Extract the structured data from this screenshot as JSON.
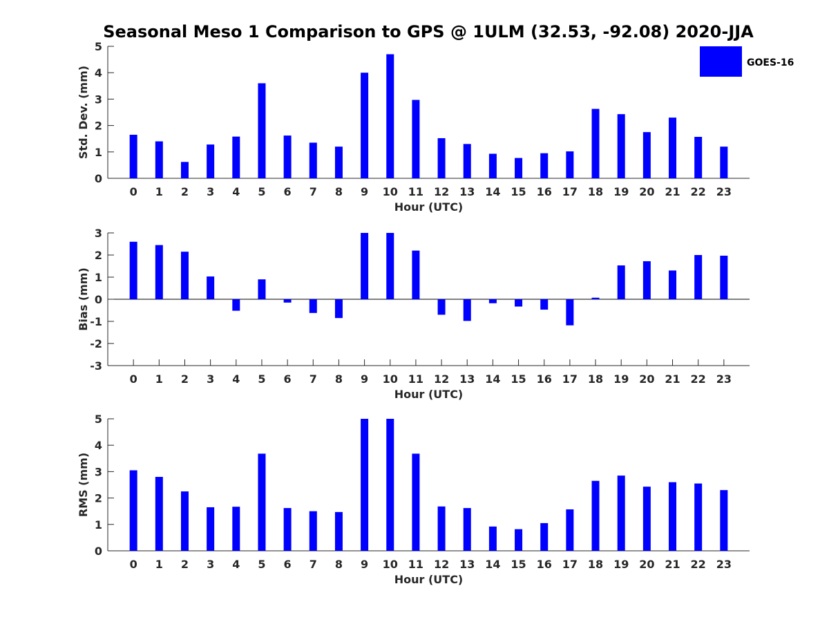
{
  "title": "Seasonal Meso 1 Comparison to GPS @ 1ULM (32.53, -92.08) 2020-JJA",
  "legend": {
    "label": "GOES-16",
    "color": "#0000ff",
    "placement": "top-right"
  },
  "chart_data": [
    {
      "type": "bar",
      "xlabel": "Hour (UTC)",
      "ylabel": "Std. Dev. (mm)",
      "ylim": [
        0,
        5
      ],
      "yticks": [
        0,
        1,
        2,
        3,
        4,
        5
      ],
      "grid": false,
      "categories": [
        "0",
        "1",
        "2",
        "3",
        "4",
        "5",
        "6",
        "7",
        "8",
        "9",
        "10",
        "11",
        "12",
        "13",
        "14",
        "15",
        "16",
        "17",
        "18",
        "19",
        "20",
        "21",
        "22",
        "23"
      ],
      "series": [
        {
          "name": "GOES-16",
          "color": "#0000ff",
          "values": [
            1.65,
            1.4,
            0.62,
            1.28,
            1.58,
            3.6,
            1.62,
            1.35,
            1.2,
            4.0,
            4.7,
            2.97,
            1.52,
            1.3,
            0.93,
            0.77,
            0.95,
            1.02,
            2.63,
            2.43,
            1.75,
            2.3,
            1.57,
            1.2
          ]
        }
      ]
    },
    {
      "type": "bar",
      "xlabel": "Hour (UTC)",
      "ylabel": "Bias (mm)",
      "ylim": [
        -3,
        3
      ],
      "yticks": [
        -3,
        -2,
        -1,
        0,
        1,
        2,
        3
      ],
      "grid": false,
      "categories": [
        "0",
        "1",
        "2",
        "3",
        "4",
        "5",
        "6",
        "7",
        "8",
        "9",
        "10",
        "11",
        "12",
        "13",
        "14",
        "15",
        "16",
        "17",
        "18",
        "19",
        "20",
        "21",
        "22",
        "23"
      ],
      "series": [
        {
          "name": "GOES-16",
          "color": "#0000ff",
          "values": [
            2.6,
            2.45,
            2.15,
            1.03,
            -0.52,
            0.9,
            -0.15,
            -0.62,
            -0.85,
            3.0,
            3.0,
            2.2,
            -0.7,
            -0.98,
            -0.18,
            -0.33,
            -0.47,
            -1.18,
            0.07,
            1.53,
            1.72,
            1.3,
            2.0,
            1.97
          ]
        }
      ]
    },
    {
      "type": "bar",
      "xlabel": "Hour (UTC)",
      "ylabel": "RMS (mm)",
      "ylim": [
        0,
        5
      ],
      "yticks": [
        0,
        1,
        2,
        3,
        4,
        5
      ],
      "grid": false,
      "categories": [
        "0",
        "1",
        "2",
        "3",
        "4",
        "5",
        "6",
        "7",
        "8",
        "9",
        "10",
        "11",
        "12",
        "13",
        "14",
        "15",
        "16",
        "17",
        "18",
        "19",
        "20",
        "21",
        "22",
        "23"
      ],
      "series": [
        {
          "name": "GOES-16",
          "color": "#0000ff",
          "values": [
            3.05,
            2.8,
            2.25,
            1.65,
            1.67,
            3.68,
            1.62,
            1.5,
            1.47,
            5.0,
            5.0,
            3.68,
            1.68,
            1.62,
            0.92,
            0.82,
            1.05,
            1.57,
            2.65,
            2.85,
            2.43,
            2.6,
            2.55,
            2.3
          ]
        }
      ]
    }
  ]
}
